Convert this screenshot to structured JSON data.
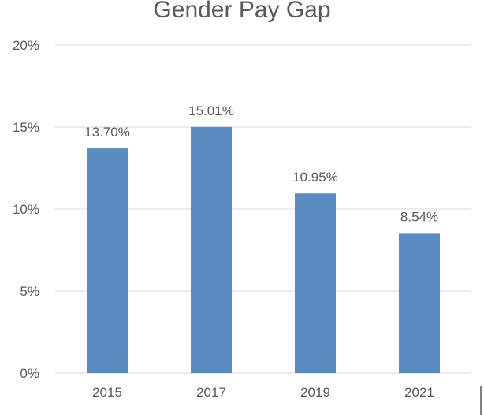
{
  "chart_data": {
    "type": "bar",
    "title": "Gender Pay Gap",
    "categories": [
      "2015",
      "2017",
      "2019",
      "2021"
    ],
    "values": [
      13.7,
      15.01,
      10.95,
      8.54
    ],
    "data_labels": [
      "13.70%",
      "15.01%",
      "10.95%",
      "8.54%"
    ],
    "y_ticks": [
      0,
      5,
      10,
      15,
      20
    ],
    "y_tick_labels": [
      "0%",
      "5%",
      "10%",
      "15%",
      "20%"
    ],
    "xlabel": "",
    "ylabel": "",
    "ylim": [
      0,
      20
    ],
    "grid": true,
    "legend": "none",
    "colors": {
      "bar": "#5b8cc1",
      "text": "#595959",
      "grid": "#d9d9d9"
    }
  }
}
